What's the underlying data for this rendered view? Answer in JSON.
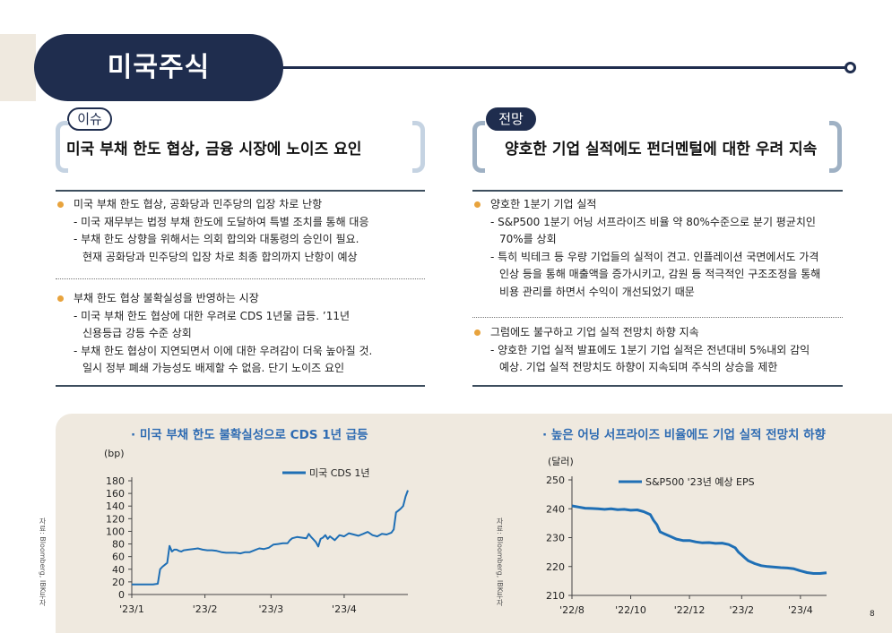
{
  "page": {
    "title": "미국주식",
    "number": "8"
  },
  "left": {
    "badge": "이슈",
    "headline": "미국 부채 한도 협상, 금융 시장에 노이즈 요인",
    "sections": [
      {
        "bullet": "미국 부채 한도 협상, 공화당과 민주당의 입장 차로 난항",
        "lines": [
          "- 미국 재무부는 법정 부채 한도에 도달하여 특별 조치를 통해 대응",
          "- 부채 한도 상향을 위해서는 의회 합의와 대통령의 승인이 필요.",
          "  현재 공화당과 민주당의 입장 차로 최종 합의까지 난항이 예상"
        ]
      },
      {
        "bullet": "부채 한도 협상 불확실성을 반영하는 시장",
        "lines": [
          "- 미국 부채 한도 협상에 대한 우려로 CDS 1년물 급등. ’11년",
          "  신용등급 강등 수준 상회",
          "- 부채 한도 협상이 지연되면서 이에 대한 우려감이 더욱 높아질 것.",
          "  일시 정부 폐쇄 가능성도 배제할 수 없음. 단기 노이즈 요인"
        ]
      }
    ]
  },
  "right": {
    "badge": "전망",
    "headline": "양호한 기업 실적에도 펀더멘털에 대한 우려 지속",
    "sections": [
      {
        "bullet": "양호한 1분기 기업 실적",
        "lines": [
          "- S&P500 1분기 어닝 서프라이즈 비율 약 80%수준으로 분기 평균치인",
          "  70%를 상회",
          "- 특히 빅테크 등 우량 기업들의 실적이 견고. 인플레이션 국면에서도 가격",
          "  인상 등을 통해 매출액을 증가시키고, 감원 등 적극적인 구조조정을 통해",
          "  비용 관리를 하면서 수익이 개선되었기 때문"
        ]
      },
      {
        "bullet": "그럼에도 불구하고 기업 실적 전망치 하향 지속",
        "lines": [
          "- 양호한 기업 실적 발표에도 1분기 기업 실적은 전년대비 5%내외 감익",
          "  예상. 기업 실적 전망치도 하향이 지속되며 주식의 상승을 제한"
        ]
      }
    ]
  },
  "colors": {
    "navy": "#1f2d4e",
    "accent_blue": "#2e6bb2",
    "line_blue": "#1f6fb5",
    "bullet_orange": "#e8a33d",
    "beige": "#efe9df"
  },
  "chart_data": [
    {
      "type": "line",
      "title": "· 미국 부채 한도 불확실성으로 CDS 1년 급등",
      "ylabel": "(bp)",
      "source": "자료: Bloomberg, IBK투자",
      "ylim": [
        0,
        180
      ],
      "yticks": [
        0,
        20,
        40,
        60,
        80,
        100,
        120,
        140,
        160,
        180
      ],
      "xlim": [
        0,
        117
      ],
      "xticks": [
        {
          "x": 0,
          "label": "'23/1"
        },
        {
          "x": 31,
          "label": "'23/2"
        },
        {
          "x": 59,
          "label": "'23/3"
        },
        {
          "x": 90,
          "label": "'23/4"
        }
      ],
      "legend": "top-right",
      "series": [
        {
          "name": "미국 CDS 1년",
          "points": [
            [
              0,
              16
            ],
            [
              3,
              16
            ],
            [
              6,
              16
            ],
            [
              9,
              16
            ],
            [
              11,
              17
            ],
            [
              12,
              40
            ],
            [
              13,
              44
            ],
            [
              14,
              47
            ],
            [
              15,
              50
            ],
            [
              16,
              77
            ],
            [
              17,
              68
            ],
            [
              18,
              71
            ],
            [
              19,
              71
            ],
            [
              20,
              69
            ],
            [
              21,
              68
            ],
            [
              22,
              70
            ],
            [
              24,
              71
            ],
            [
              26,
              72
            ],
            [
              28,
              73
            ],
            [
              30,
              71
            ],
            [
              32,
              70
            ],
            [
              34,
              70
            ],
            [
              36,
              69
            ],
            [
              38,
              67
            ],
            [
              40,
              66
            ],
            [
              42,
              66
            ],
            [
              44,
              66
            ],
            [
              46,
              65
            ],
            [
              48,
              67
            ],
            [
              50,
              67
            ],
            [
              52,
              70
            ],
            [
              54,
              73
            ],
            [
              56,
              72
            ],
            [
              58,
              74
            ],
            [
              60,
              79
            ],
            [
              62,
              80
            ],
            [
              64,
              81
            ],
            [
              66,
              81
            ],
            [
              67,
              86
            ],
            [
              68,
              89
            ],
            [
              70,
              91
            ],
            [
              72,
              90
            ],
            [
              74,
              89
            ],
            [
              75,
              96
            ],
            [
              76,
              91
            ],
            [
              77,
              87
            ],
            [
              78,
              83
            ],
            [
              79,
              76
            ],
            [
              80,
              88
            ],
            [
              81,
              90
            ],
            [
              82,
              94
            ],
            [
              83,
              88
            ],
            [
              84,
              92
            ],
            [
              86,
              86
            ],
            [
              88,
              94
            ],
            [
              90,
              92
            ],
            [
              92,
              97
            ],
            [
              94,
              95
            ],
            [
              96,
              93
            ],
            [
              98,
              96
            ],
            [
              100,
              99
            ],
            [
              102,
              94
            ],
            [
              104,
              92
            ],
            [
              106,
              96
            ],
            [
              108,
              95
            ],
            [
              110,
              98
            ],
            [
              111,
              103
            ],
            [
              112,
              130
            ],
            [
              113,
              133
            ],
            [
              114,
              136
            ],
            [
              115,
              140
            ],
            [
              116,
              155
            ],
            [
              117,
              165
            ]
          ]
        }
      ]
    },
    {
      "type": "line",
      "title": "· 높은 어닝 서프라이즈 비율에도 기업 실적 전망치 하향",
      "ylabel": "(달러)",
      "source": "자료: Bloomberg, IBK투자",
      "ylim": [
        210,
        250
      ],
      "yticks": [
        210,
        220,
        230,
        240,
        250
      ],
      "xlim": [
        0,
        39
      ],
      "xticks": [
        {
          "x": 0,
          "label": "'22/8"
        },
        {
          "x": 9,
          "label": "'22/10"
        },
        {
          "x": 18,
          "label": "'22/12"
        },
        {
          "x": 26,
          "label": "'23/2"
        },
        {
          "x": 35,
          "label": "'23/4"
        }
      ],
      "legend": "top-left",
      "series": [
        {
          "name": "S&P500 '23년 예상 EPS",
          "points": [
            [
              0,
              241
            ],
            [
              1,
              240.6
            ],
            [
              2,
              240.2
            ],
            [
              3,
              240.1
            ],
            [
              4,
              240
            ],
            [
              5,
              239.8
            ],
            [
              6,
              240
            ],
            [
              7,
              239.7
            ],
            [
              8,
              239.8
            ],
            [
              9,
              239.5
            ],
            [
              10,
              239.6
            ],
            [
              11,
              239
            ],
            [
              12,
              238
            ],
            [
              12.5,
              236
            ],
            [
              13,
              234.5
            ],
            [
              13.5,
              232
            ],
            [
              14,
              231.5
            ],
            [
              15,
              230.5
            ],
            [
              16,
              229.5
            ],
            [
              17,
              229
            ],
            [
              18,
              229
            ],
            [
              19,
              228.5
            ],
            [
              20,
              228.2
            ],
            [
              21,
              228.3
            ],
            [
              22,
              228
            ],
            [
              23,
              228.1
            ],
            [
              24,
              227.6
            ],
            [
              25,
              226.5
            ],
            [
              25.5,
              225
            ],
            [
              26,
              224
            ],
            [
              26.5,
              223
            ],
            [
              27,
              222
            ],
            [
              28,
              221
            ],
            [
              29,
              220.3
            ],
            [
              30,
              220
            ],
            [
              31,
              219.8
            ],
            [
              32,
              219.6
            ],
            [
              33,
              219.5
            ],
            [
              34,
              219.2
            ],
            [
              35,
              218.5
            ],
            [
              36,
              217.9
            ],
            [
              37,
              217.6
            ],
            [
              38,
              217.6
            ],
            [
              39,
              217.8
            ]
          ]
        }
      ]
    }
  ]
}
